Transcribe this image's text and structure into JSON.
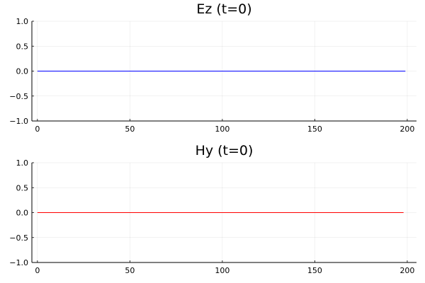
{
  "chart_data": [
    {
      "type": "line",
      "title": "Ez (t=0)",
      "xlabel": "",
      "ylabel": "",
      "xlim": [
        -3,
        205
      ],
      "ylim": [
        -1.0,
        1.0
      ],
      "xticks": [
        0,
        50,
        100,
        150,
        200
      ],
      "xtick_labels": [
        "0",
        "50",
        "100",
        "150",
        "200"
      ],
      "yticks": [
        -1.0,
        -0.5,
        0.0,
        0.5,
        1.0
      ],
      "ytick_labels": [
        "−1.0",
        "−0.5",
        "0.0",
        "0.5",
        "1.0"
      ],
      "grid": true,
      "legend": "none",
      "series": [
        {
          "color": "#0000ff",
          "x": [
            0,
            199
          ],
          "y": [
            0.0,
            0.0
          ]
        }
      ]
    },
    {
      "type": "line",
      "title": "Hy (t=0)",
      "xlabel": "",
      "ylabel": "",
      "xlim": [
        -3,
        205
      ],
      "ylim": [
        -1.0,
        1.0
      ],
      "xticks": [
        0,
        50,
        100,
        150,
        200
      ],
      "xtick_labels": [
        "0",
        "50",
        "100",
        "150",
        "200"
      ],
      "yticks": [
        -1.0,
        -0.5,
        0.0,
        0.5,
        1.0
      ],
      "ytick_labels": [
        "−1.0",
        "−0.5",
        "0.0",
        "0.5",
        "1.0"
      ],
      "grid": true,
      "legend": "none",
      "series": [
        {
          "color": "#ff0000",
          "x": [
            0,
            198
          ],
          "y": [
            0.0,
            0.0
          ]
        }
      ]
    }
  ]
}
